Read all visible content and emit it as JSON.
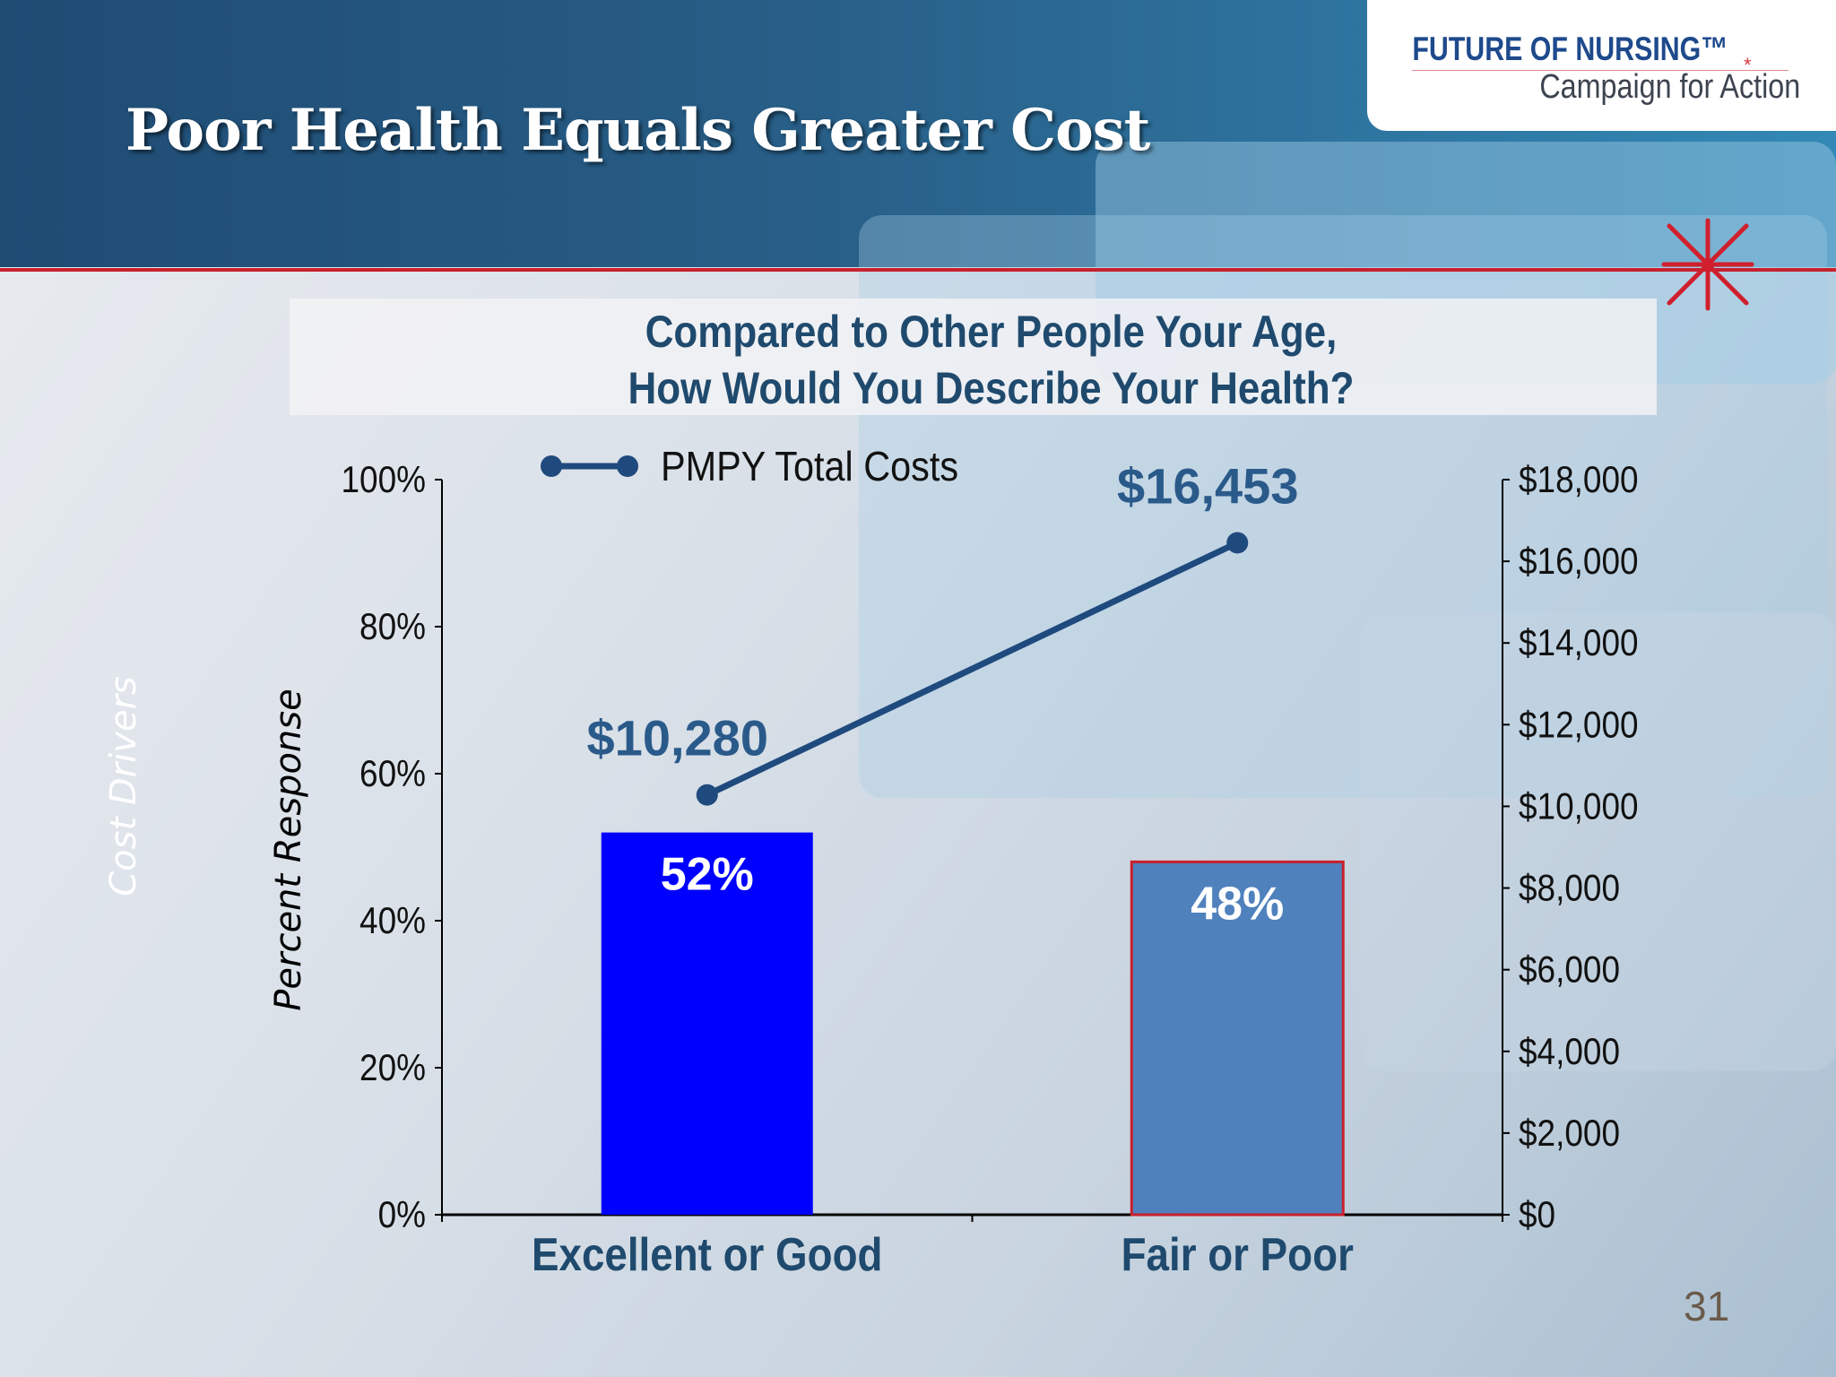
{
  "slide": {
    "title": "Poor Health Equals Greater Cost",
    "side_label": "Cost Drivers",
    "page_number": "31",
    "logo": {
      "line1": "FUTURE OF NURSING™",
      "line2": "Campaign for Action"
    },
    "colors": {
      "header_dark": "#1f4b73",
      "header_light": "#3388b6",
      "accent_red": "#c8202d",
      "title_text": "#1f4a6e"
    }
  },
  "chart_data": {
    "type": "bar",
    "title": "Compared to Other People Your Age,\nHow Would You Describe Your Health?",
    "title_lines": [
      "Compared to Other People Your Age,",
      "How Would You Describe Your Health?"
    ],
    "ylabel": "Percent Response",
    "y2label": "",
    "categories": [
      "Excellent or Good",
      "Fair or Poor"
    ],
    "ylim": [
      0,
      100
    ],
    "y2lim": [
      0,
      18000
    ],
    "y_ticks": [
      "0%",
      "20%",
      "40%",
      "60%",
      "80%",
      "100%"
    ],
    "y2_ticks": [
      "$0",
      "$2,000",
      "$4,000",
      "$6,000",
      "$8,000",
      "$10,000",
      "$12,000",
      "$14,000",
      "$16,000",
      "$18,000"
    ],
    "series": [
      {
        "kind": "bar",
        "axis": "left",
        "values": [
          52,
          48
        ],
        "labels": [
          "52%",
          "48%"
        ],
        "colors": [
          "#0000ff",
          "#4f81bd"
        ]
      },
      {
        "name": "PMPY Total Costs",
        "kind": "line",
        "axis": "right",
        "values": [
          10280,
          16453
        ],
        "labels": [
          "$10,280",
          "$16,453"
        ],
        "color": "#1f4a7e"
      }
    ],
    "legend": "top",
    "grid": false
  }
}
